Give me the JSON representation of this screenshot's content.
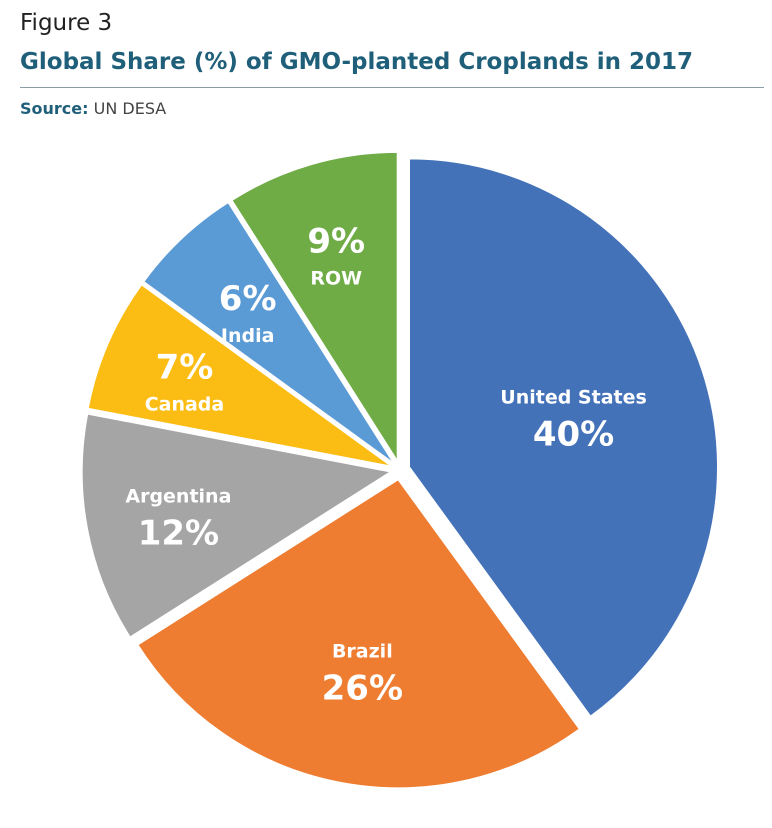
{
  "header": {
    "figure_label": "Figure 3",
    "title": "Global Share (%) of GMO-planted Croplands in 2017",
    "source_key": "Source:",
    "source_value": "UN DESA"
  },
  "chart_data": {
    "type": "pie",
    "title": "Global Share (%) of GMO-planted Croplands in 2017",
    "slices": [
      {
        "label": "United States",
        "value": 40,
        "display": "40%",
        "color": "#4472b9"
      },
      {
        "label": "Brazil",
        "value": 26,
        "display": "26%",
        "color": "#ee7d31"
      },
      {
        "label": "Argentina",
        "value": 12,
        "display": "12%",
        "color": "#a5a5a5"
      },
      {
        "label": "Canada",
        "value": 7,
        "display": "7%",
        "color": "#fbbc13"
      },
      {
        "label": "India",
        "value": 6,
        "display": "6%",
        "color": "#5b9bd5"
      },
      {
        "label": "ROW",
        "value": 9,
        "display": "9%",
        "color": "#6fac46"
      }
    ],
    "start_angle_deg": 0,
    "direction": "clockwise",
    "exploded": true
  }
}
